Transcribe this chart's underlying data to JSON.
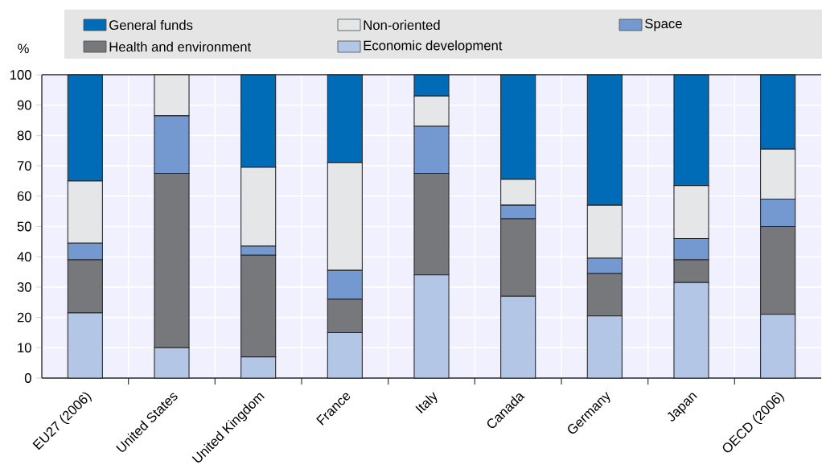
{
  "chart_data": {
    "type": "bar",
    "stacked": true,
    "ylabel": "%",
    "categories": [
      "EU27 (2006)",
      "United States",
      "United Kingdom",
      "France",
      "Italy",
      "Canada",
      "Germany",
      "Japan",
      "OECD (2006)"
    ],
    "series": [
      {
        "name": "Economic development",
        "color": "#b3c6e6",
        "values": [
          21.5,
          10,
          7,
          15,
          34,
          27,
          20.5,
          31.5,
          21
        ]
      },
      {
        "name": "Health and environment",
        "color": "#77787b",
        "values": [
          17.5,
          57.5,
          33.5,
          11,
          33.5,
          25.5,
          14,
          7.5,
          29
        ]
      },
      {
        "name": "Space",
        "color": "#7399d0",
        "values": [
          5.5,
          19,
          3,
          9.5,
          15.5,
          4.5,
          5,
          7,
          9
        ]
      },
      {
        "name": "Non-oriented",
        "color": "#e5e6e8",
        "values": [
          20.5,
          13.5,
          26,
          35.5,
          10,
          8.5,
          17.5,
          17.5,
          16.5
        ]
      },
      {
        "name": "General funds",
        "color": "#006bb6",
        "values": [
          35,
          0,
          30.5,
          29,
          7,
          34.5,
          43,
          36.5,
          24.5
        ]
      }
    ],
    "ylim": [
      0,
      100
    ],
    "yticks": [
      0,
      10,
      20,
      30,
      40,
      50,
      60,
      70,
      80,
      90,
      100
    ],
    "grid": true,
    "legend": "top"
  }
}
